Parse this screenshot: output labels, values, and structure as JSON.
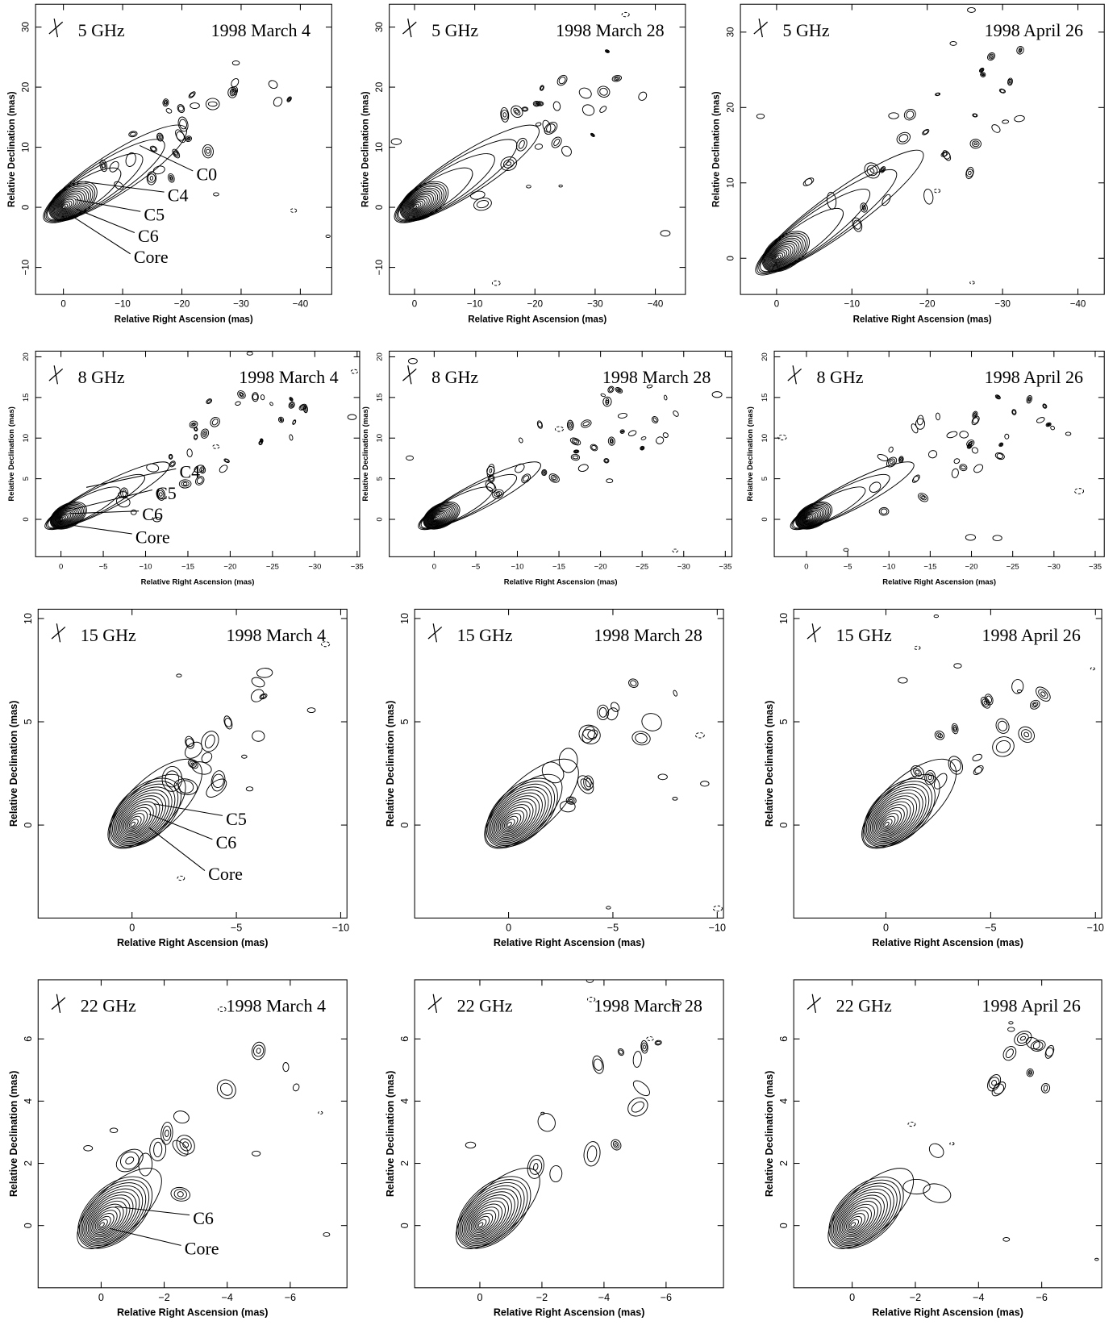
{
  "chart_data": [
    {
      "type": "contour",
      "title": "5 GHz",
      "subtitle": "1998 March 4",
      "xlabel": "Relative Right Ascension (mas)",
      "ylabel": "Relative Declination (mas)",
      "xlim": [
        4.7,
        -45.3
      ],
      "ylim": [
        -14.5,
        33.8
      ],
      "xticks": [
        0,
        {
          "value": -10,
          "label": "−10"
        },
        {
          "value": -20,
          "label": "−20"
        },
        {
          "value": -30,
          "label": "−30"
        },
        {
          "value": -40,
          "label": "−40"
        }
      ],
      "yticks": [
        {
          "value": -10,
          "label": "−10"
        },
        0,
        10,
        20,
        30
      ],
      "annotations": [
        "C0",
        "C4",
        "C5",
        "C6",
        "Core"
      ]
    },
    {
      "type": "contour",
      "title": "5 GHz",
      "subtitle": "1998 March 28",
      "xlabel": "Relative Right Ascension (mas)",
      "ylabel": "Relative Declination (mas)",
      "xlim": [
        4.2,
        -45
      ],
      "ylim": [
        -14.5,
        33.8
      ],
      "xticks": [
        0,
        {
          "value": -10,
          "label": "−10"
        },
        {
          "value": -20,
          "label": "−20"
        },
        {
          "value": -30,
          "label": "−30"
        },
        {
          "value": -40,
          "label": "−40"
        }
      ],
      "yticks": [
        {
          "value": -10,
          "label": "−10"
        },
        0,
        10,
        20,
        30
      ]
    },
    {
      "type": "contour",
      "title": "5 GHz",
      "subtitle": "1998 April 26",
      "xlabel": "Relative Right Ascension (mas)",
      "ylabel": "Relative Declination (mas)",
      "xlim": [
        4.8,
        -43.5
      ],
      "ylim": [
        -4.8,
        33.7
      ],
      "xticks": [
        0,
        {
          "value": -10,
          "label": "−10"
        },
        {
          "value": -20,
          "label": "−20"
        },
        {
          "value": -30,
          "label": "−30"
        },
        {
          "value": -40,
          "label": "−40"
        }
      ],
      "yticks": [
        0,
        10,
        20,
        30
      ]
    },
    {
      "type": "contour",
      "title": "8 GHz",
      "subtitle": "1998 March 4",
      "xlabel": "Relative Right Ascension (mas)",
      "ylabel": "Relative Declination (mas)",
      "xlim": [
        3,
        -35.3
      ],
      "ylim": [
        -4.6,
        20.7
      ],
      "xticks": [
        0,
        {
          "value": -5,
          "label": "−5"
        },
        {
          "value": -10,
          "label": "−10"
        },
        {
          "value": -15,
          "label": "−15"
        },
        {
          "value": -20,
          "label": "−20"
        },
        {
          "value": -25,
          "label": "−25"
        },
        {
          "value": -30,
          "label": "−30"
        },
        {
          "value": -35,
          "label": "−35"
        }
      ],
      "yticks": [
        0,
        5,
        10,
        15,
        20
      ],
      "annotations": [
        "C4",
        "C5",
        "C6",
        "Core"
      ]
    },
    {
      "type": "contour",
      "title": "8 GHz",
      "subtitle": "1998 March 28",
      "xlabel": "Relative Right Ascension (mas)",
      "ylabel": "Relative Declination (mas)",
      "xlim": [
        5.4,
        -35.8
      ],
      "ylim": [
        -4.6,
        20.7
      ],
      "xticks": [
        0,
        {
          "value": -5,
          "label": "−5"
        },
        {
          "value": -10,
          "label": "−10"
        },
        {
          "value": -15,
          "label": "−15"
        },
        {
          "value": -20,
          "label": "−20"
        },
        {
          "value": -25,
          "label": "−25"
        },
        {
          "value": -30,
          "label": "−30"
        },
        {
          "value": -35,
          "label": "−35"
        }
      ],
      "yticks": [
        0,
        5,
        10,
        15,
        20
      ]
    },
    {
      "type": "contour",
      "title": "8 GHz",
      "subtitle": "1998 April 26",
      "xlabel": "Relative Right Ascension (mas)",
      "ylabel": "Relative Declination (mas)",
      "xlim": [
        3.9,
        -36.1
      ],
      "ylim": [
        -4.6,
        20.7
      ],
      "xticks": [
        0,
        {
          "value": -5,
          "label": "−5"
        },
        {
          "value": -10,
          "label": "−10"
        },
        {
          "value": -15,
          "label": "−15"
        },
        {
          "value": -20,
          "label": "−20"
        },
        {
          "value": -25,
          "label": "−25"
        },
        {
          "value": -30,
          "label": "−30"
        },
        {
          "value": -35,
          "label": "−35"
        }
      ],
      "yticks": [
        0,
        5,
        10,
        15,
        20
      ]
    },
    {
      "type": "contour",
      "title": "15 GHz",
      "subtitle": "1998 March 4",
      "xlabel": "Relative Right Ascension (mas)",
      "ylabel": "Relative Declination (mas)",
      "xlim": [
        4.5,
        -10.3
      ],
      "ylim": [
        -4.5,
        10.45
      ],
      "xticks": [
        0,
        {
          "value": -5,
          "label": "−5"
        },
        {
          "value": -10,
          "label": "−10"
        }
      ],
      "yticks": [
        0,
        5,
        10
      ],
      "annotations": [
        "C5",
        "C6",
        "Core"
      ]
    },
    {
      "type": "contour",
      "title": "15 GHz",
      "subtitle": "1998 March 28",
      "xlabel": "Relative Right Ascension (mas)",
      "ylabel": "Relative Declination (mas)",
      "xlim": [
        4.5,
        -10.3
      ],
      "ylim": [
        -4.5,
        10.45
      ],
      "xticks": [
        0,
        {
          "value": -5,
          "label": "−5"
        },
        {
          "value": -10,
          "label": "−10"
        }
      ],
      "yticks": [
        0,
        5,
        10
      ]
    },
    {
      "type": "contour",
      "title": "15 GHz",
      "subtitle": "1998 April 26",
      "xlabel": "Relative Right Ascension (mas)",
      "ylabel": "Relative Declination (mas)",
      "xlim": [
        4.4,
        -10.3
      ],
      "ylim": [
        -4.5,
        10.45
      ],
      "xticks": [
        0,
        {
          "value": -5,
          "label": "−5"
        },
        {
          "value": -10,
          "label": "−10"
        }
      ],
      "yticks": [
        0,
        5,
        10
      ]
    },
    {
      "type": "contour",
      "title": "22 GHz",
      "subtitle": "1998 March 4",
      "xlabel": "Relative Right Ascension (mas)",
      "ylabel": "Relative Declination (mas)",
      "xlim": [
        2,
        -7.8
      ],
      "ylim": [
        -2,
        7.9
      ],
      "xticks": [
        0,
        {
          "value": -2,
          "label": "−2"
        },
        {
          "value": -4,
          "label": "−4"
        },
        {
          "value": -6,
          "label": "−6"
        }
      ],
      "yticks": [
        0,
        2,
        4,
        6
      ],
      "annotations": [
        "C6",
        "Core"
      ]
    },
    {
      "type": "contour",
      "title": "22 GHz",
      "subtitle": "1998 March 28",
      "xlabel": "Relative Right Ascension (mas)",
      "ylabel": "Relative Declination (mas)",
      "xlim": [
        2.1,
        -7.85
      ],
      "ylim": [
        -2,
        7.9
      ],
      "xticks": [
        0,
        {
          "value": -2,
          "label": "−2"
        },
        {
          "value": -4,
          "label": "−4"
        },
        {
          "value": -6,
          "label": "−6"
        }
      ],
      "yticks": [
        0,
        2,
        4,
        6
      ]
    },
    {
      "type": "contour",
      "title": "22 GHz",
      "subtitle": "1998 April 26",
      "xlabel": "Relative Right Ascension (mas)",
      "ylabel": "Relative Declination (mas)",
      "xlim": [
        1.85,
        -7.9
      ],
      "ylim": [
        -2,
        7.9
      ],
      "xticks": [
        0,
        {
          "value": -2,
          "label": "−2"
        },
        {
          "value": -4,
          "label": "−4"
        },
        {
          "value": -6,
          "label": "−6"
        }
      ],
      "yticks": [
        0,
        2,
        4,
        6
      ]
    }
  ]
}
